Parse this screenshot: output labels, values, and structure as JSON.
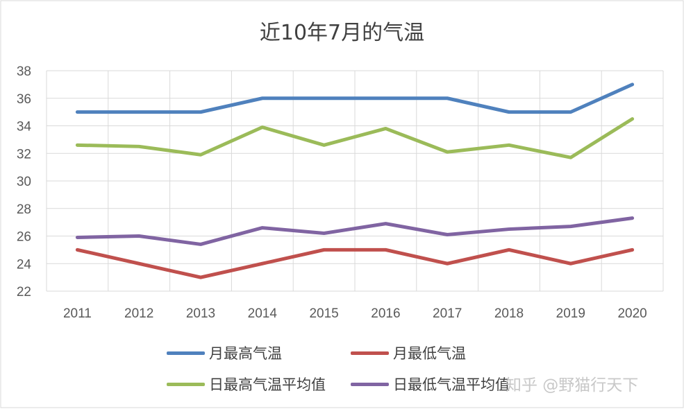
{
  "chart_data": {
    "type": "line",
    "title": "近10年7月的气温",
    "categories": [
      "2011",
      "2012",
      "2013",
      "2014",
      "2015",
      "2016",
      "2017",
      "2018",
      "2019",
      "2020"
    ],
    "ylim": [
      22,
      38
    ],
    "yticks": [
      22,
      24,
      26,
      28,
      30,
      32,
      34,
      36,
      38
    ],
    "grid": true,
    "legend_position": "bottom",
    "series": [
      {
        "name": "月最高气温",
        "color": "#4f81bd",
        "values": [
          35,
          35,
          35,
          36,
          36,
          36,
          36,
          35,
          35,
          37
        ]
      },
      {
        "name": "月最低气温",
        "color": "#c0504d",
        "values": [
          25,
          24,
          23,
          24,
          25,
          25,
          24,
          25,
          24,
          25
        ]
      },
      {
        "name": "日最高气温平均值",
        "color": "#9bbb59",
        "values": [
          32.6,
          32.5,
          31.9,
          33.9,
          32.6,
          33.8,
          32.1,
          32.6,
          31.7,
          34.5
        ]
      },
      {
        "name": "日最低气温平均值",
        "color": "#8064a2",
        "values": [
          25.9,
          26.0,
          25.4,
          26.6,
          26.2,
          26.9,
          26.1,
          26.5,
          26.7,
          27.3
        ]
      }
    ]
  },
  "watermark": "知乎 @野猫行天下"
}
